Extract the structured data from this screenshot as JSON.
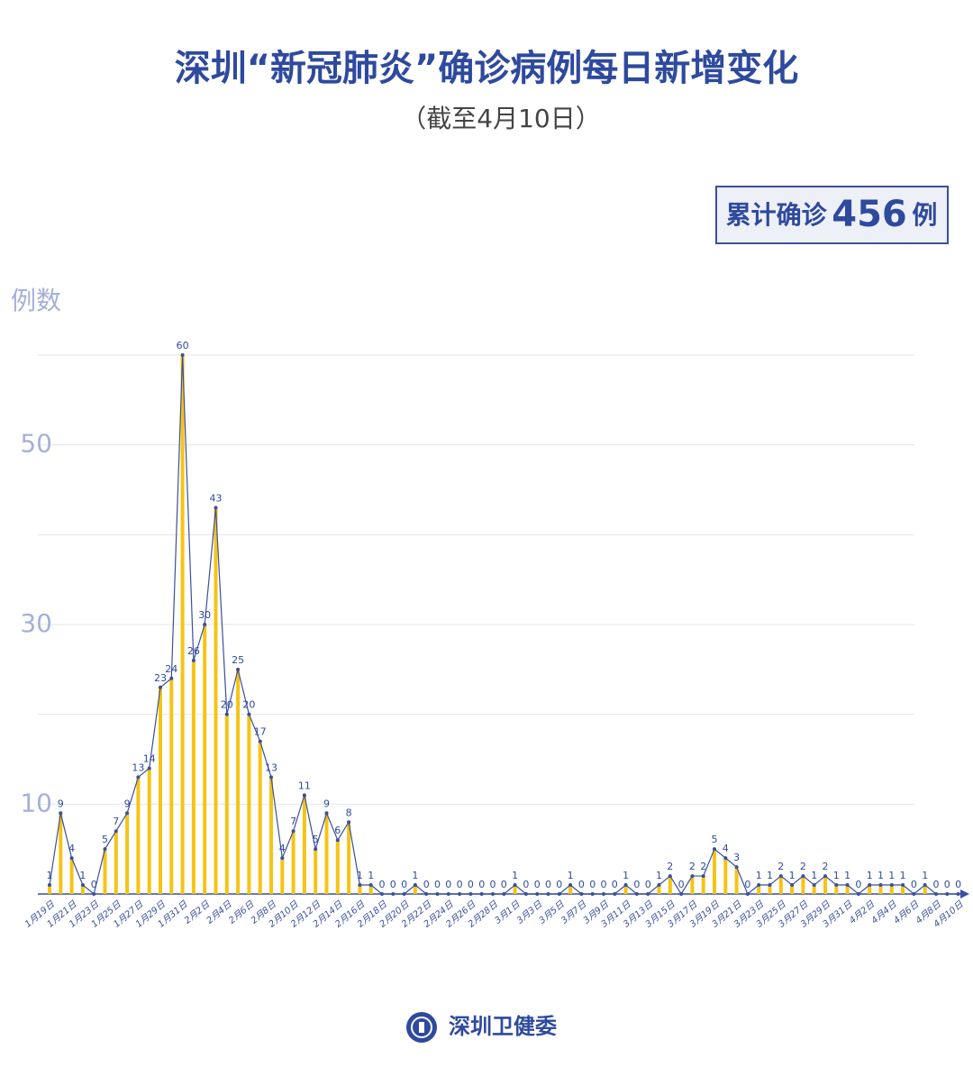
{
  "chart_data": {
    "type": "bar",
    "title": "深圳“新冠肺炎”确诊病例每日新增变化",
    "subtitle": "（截至4月10日）",
    "total_prefix": "累计确诊",
    "total": 456,
    "total_suffix": "例",
    "y_label": "例数",
    "source": "深圳卫健委",
    "categories": [
      "1月19日",
      null,
      "1月21日",
      null,
      "1月23日",
      null,
      "1月25日",
      null,
      "1月27日",
      null,
      "1月29日",
      null,
      "1月31日",
      null,
      "2月2日",
      null,
      "2月4日",
      null,
      "2月6日",
      null,
      "2月8日",
      null,
      "2月10日",
      null,
      "2月12日",
      null,
      "2月14日",
      null,
      "2月16日",
      null,
      "2月18日",
      null,
      "2月20日",
      null,
      "2月22日",
      null,
      "2月24日",
      null,
      "2月26日",
      null,
      "2月28日",
      null,
      "3月1日",
      null,
      "3月3日",
      null,
      "3月5日",
      null,
      "3月7日",
      null,
      "3月9日",
      null,
      "3月11日",
      null,
      "3月13日",
      null,
      "3月15日",
      null,
      "3月17日",
      null,
      "3月19日",
      null,
      "3月21日",
      null,
      "3月23日",
      null,
      "3月25日",
      null,
      "3月27日",
      null,
      "3月29日",
      null,
      "3月31日",
      null,
      "4月2日",
      null,
      "4月4日",
      null,
      "4月6日",
      null,
      "4月8日",
      null,
      "4月10日"
    ],
    "values": [
      1,
      9,
      4,
      1,
      0,
      5,
      7,
      9,
      13,
      14,
      23,
      24,
      60,
      26,
      30,
      43,
      20,
      25,
      20,
      17,
      13,
      4,
      7,
      11,
      5,
      9,
      6,
      8,
      1,
      1,
      0,
      0,
      0,
      1,
      0,
      0,
      0,
      0,
      0,
      0,
      0,
      0,
      1,
      0,
      0,
      0,
      0,
      1,
      0,
      0,
      0,
      0,
      1,
      0,
      0,
      1,
      2,
      0,
      2,
      2,
      5,
      4,
      3,
      0,
      1,
      1,
      2,
      1,
      2,
      1,
      2,
      1,
      1,
      0,
      1,
      1,
      1,
      1,
      0,
      1,
      0,
      0,
      0
    ],
    "color": "#f5c414",
    "line_color": "#3a4f9f",
    "ylim": [
      0,
      60
    ],
    "yticks": [
      10,
      30,
      50
    ],
    "ygrid": [
      10,
      20,
      30,
      40,
      50,
      60
    ],
    "grid": true
  }
}
